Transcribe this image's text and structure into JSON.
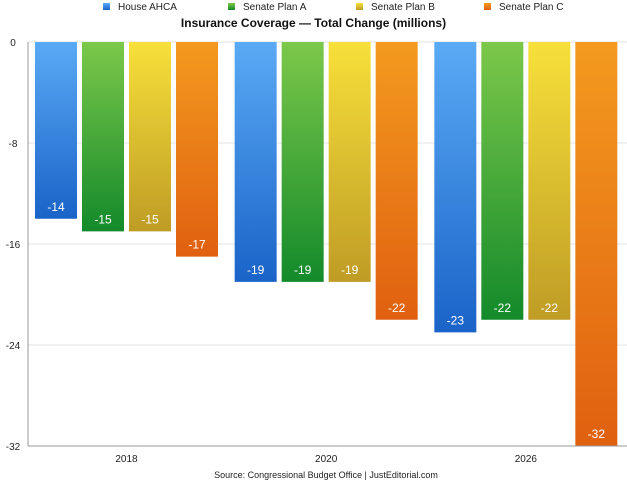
{
  "chart_data": {
    "type": "bar",
    "title": "Insurance Coverage — Total Change (millions)",
    "source": "Source: Congressional Budget Office | JustEditorial.com",
    "categories": [
      "2018",
      "2020",
      "2026"
    ],
    "series": [
      {
        "name": "House AHCA",
        "values": [
          -14,
          -19,
          -23
        ],
        "color_top": "#5aaaf5",
        "color_bottom": "#1a63c8"
      },
      {
        "name": "Senate Plan A",
        "values": [
          -15,
          -19,
          -22
        ],
        "color_top": "#7cc84a",
        "color_bottom": "#138a2a"
      },
      {
        "name": "Senate Plan B",
        "values": [
          -15,
          -19,
          -22
        ],
        "color_top": "#f7e03a",
        "color_bottom": "#bf9c25"
      },
      {
        "name": "Senate Plan C",
        "values": [
          -17,
          -22,
          -32
        ],
        "color_top": "#f39a1f",
        "color_bottom": "#e06010"
      }
    ],
    "ylim": [
      -32,
      0
    ],
    "yticks": [
      "0",
      "-8",
      "-16",
      "-24",
      "-32"
    ],
    "xlabel": "",
    "ylabel": "",
    "grid": true,
    "legend_position": "top"
  }
}
